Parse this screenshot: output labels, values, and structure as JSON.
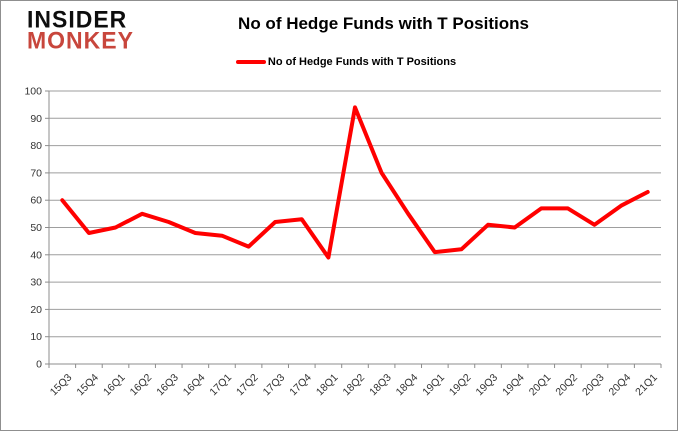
{
  "header": {
    "logo_line1": "INSIDER",
    "logo_line2": "MONKEY",
    "logo_color2": "#c8463c",
    "title": "No of Hedge Funds with T Positions"
  },
  "legend": {
    "label": "No of Hedge Funds with T Positions",
    "color": "#ff0000"
  },
  "colors": {
    "series": "#ff0000",
    "grid": "#9e9e9e",
    "axis": "#8c8c8c",
    "tick_label": "#333333"
  },
  "chart_data": {
    "type": "line",
    "title": "No of Hedge Funds with T Positions",
    "legend_entries": [
      "No of Hedge Funds with T Positions"
    ],
    "legend_position": "top",
    "grid": true,
    "categories": [
      "15Q3",
      "15Q4",
      "16Q1",
      "16Q2",
      "16Q3",
      "16Q4",
      "17Q1",
      "17Q2",
      "17Q3",
      "17Q4",
      "18Q1",
      "18Q2",
      "18Q3",
      "18Q4",
      "19Q1",
      "19Q2",
      "19Q3",
      "19Q4",
      "20Q1",
      "20Q2",
      "20Q3",
      "20Q4",
      "21Q1"
    ],
    "series": [
      {
        "name": "No of Hedge Funds with T Positions",
        "color": "#ff0000",
        "values": [
          60,
          48,
          50,
          55,
          52,
          48,
          47,
          43,
          52,
          53,
          39,
          94,
          70,
          55,
          41,
          42,
          51,
          50,
          57,
          57,
          51,
          58,
          63
        ]
      }
    ],
    "xlabel": "",
    "ylabel": "",
    "ylim": [
      0,
      100
    ],
    "yticks": [
      0,
      10,
      20,
      30,
      40,
      50,
      60,
      70,
      80,
      90,
      100
    ]
  }
}
